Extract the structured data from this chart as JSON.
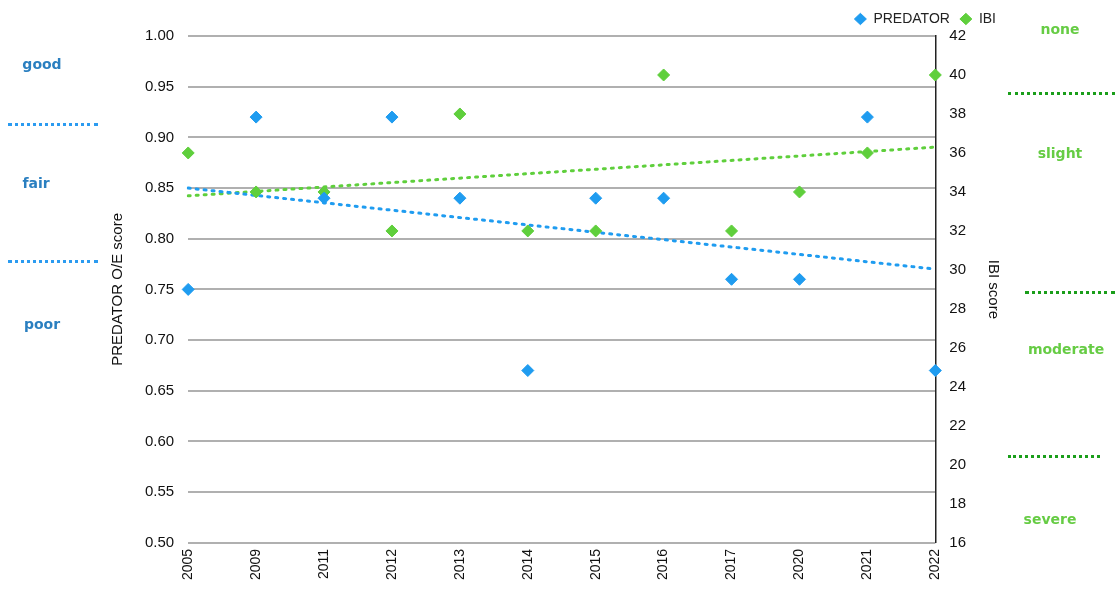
{
  "chart_data": {
    "type": "scatter",
    "categories": [
      "2005",
      "2009",
      "2011",
      "2012",
      "2013",
      "2014",
      "2015",
      "2016",
      "2017",
      "2020",
      "2021",
      "2022"
    ],
    "series": [
      {
        "name": "PREDATOR",
        "color": "#1f9cf0",
        "values": [
          0.75,
          0.92,
          0.84,
          0.92,
          0.84,
          0.67,
          0.84,
          0.84,
          0.76,
          0.76,
          0.92,
          0.67
        ]
      },
      {
        "name": "IBI",
        "color": "#5fcf3c",
        "axis": "y2",
        "values": [
          36,
          34,
          34,
          32,
          38,
          32,
          32,
          40,
          32,
          34,
          36,
          40
        ]
      },
      {
        "type": "line",
        "color": "#1f9cf0",
        "line_style": "dotted",
        "marker": "none",
        "values": [
          0.85,
          null,
          null,
          null,
          null,
          null,
          null,
          null,
          null,
          null,
          null,
          0.77
        ]
      },
      {
        "type": "line",
        "color": "#5fcf3c",
        "axis": "y2",
        "line_style": "dotted",
        "marker": "none",
        "values": [
          33.8,
          null,
          null,
          null,
          null,
          null,
          null,
          null,
          null,
          null,
          null,
          36.3
        ]
      }
    ],
    "marker": "diamond",
    "ylabel": "PREDATOR O/E score",
    "y2label": "IBI score",
    "ylim": [
      0.5,
      1.0
    ],
    "yticks": [
      {
        "value": 0.5,
        "label": "0.50"
      },
      {
        "value": 0.55,
        "label": "0.55"
      },
      {
        "value": 0.6,
        "label": "0.60"
      },
      {
        "value": 0.65,
        "label": "0.65"
      },
      {
        "value": 0.7,
        "label": "0.70"
      },
      {
        "value": 0.75,
        "label": "0.75"
      },
      {
        "value": 0.8,
        "label": "0.80"
      },
      {
        "value": 0.85,
        "label": "0.85"
      },
      {
        "value": 0.9,
        "label": "0.90"
      },
      {
        "value": 0.95,
        "label": "0.95"
      },
      {
        "value": 1.0,
        "label": "1.00"
      }
    ],
    "y2lim": [
      16,
      42
    ],
    "y2ticks": [
      16,
      18,
      20,
      22,
      24,
      26,
      28,
      30,
      32,
      34,
      36,
      38,
      40,
      42
    ],
    "grid": "y",
    "legend": "top right",
    "annotations": [
      "good",
      "fair",
      "poor",
      "none",
      "slight",
      "moderate",
      "severe"
    ]
  }
}
